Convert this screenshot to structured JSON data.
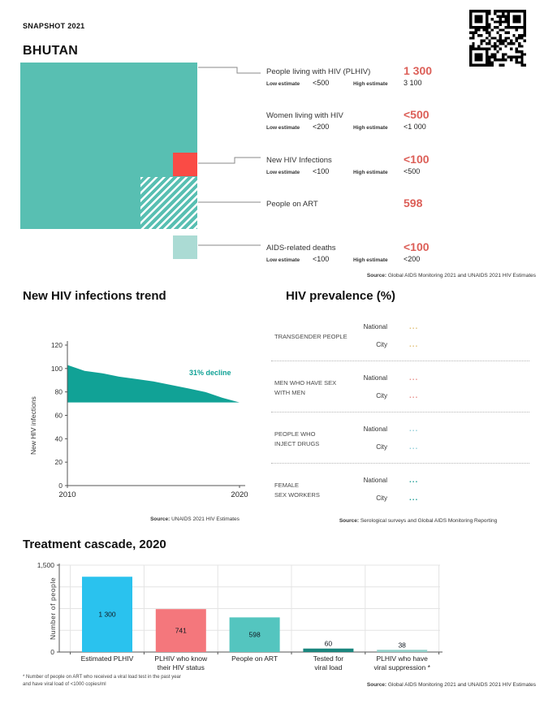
{
  "header": {
    "snapshot": "SNAPSHOT 2021",
    "country": "BHUTAN"
  },
  "key_stats": {
    "stats": [
      {
        "label": "People living with HIV (PLHIV)",
        "value": "1 300",
        "low_label": "Low estimate",
        "low": "<500",
        "high_label": "High estimate",
        "high": "3 100"
      },
      {
        "label": "Women living with HIV",
        "value": "<500",
        "low_label": "Low estimate",
        "low": "<200",
        "high_label": "High estimate",
        "high": "<1 000"
      },
      {
        "label": "New HIV Infections",
        "value": "<100",
        "low_label": "Low estimate",
        "low": "<100",
        "high_label": "High estimate",
        "high": "<500"
      },
      {
        "label": "People on ART",
        "value": "598"
      },
      {
        "label": "AIDS-related deaths",
        "value": "<100",
        "low_label": "Low estimate",
        "low": "<100",
        "high_label": "High estimate",
        "high": "<200"
      }
    ],
    "source": {
      "label": "Source:",
      "text": " Global AIDS Monitoring 2021 and UNAIDS 2021 HIV Estimates"
    },
    "accent_color": "#dc5f58",
    "square_colors": {
      "plhiv": "#58bfb2",
      "new_infections": "#fa4b45",
      "aids_deaths": "#abdbd4"
    }
  },
  "trend": {
    "source": {
      "label": "Source:",
      "text": " UNAIDS 2021 HIV Estimates"
    }
  },
  "prevalence": {
    "title": "HIV prevalence (%)",
    "national_label": "National",
    "city_label": "City",
    "groups": [
      {
        "name": "TRANSGENDER PEOPLE",
        "national": "...",
        "city": "...",
        "color": "#e2c27c"
      },
      {
        "name": "MEN WHO HAVE SEX\nWITH MEN",
        "national": "...",
        "city": "...",
        "color": "#e89490"
      },
      {
        "name": "PEOPLE WHO\nINJECT DRUGS",
        "national": "...",
        "city": "...",
        "color": "#96d0da"
      },
      {
        "name": "FEMALE\nSEX WORKERS",
        "national": "...",
        "city": "...",
        "color": "#2aa29a"
      }
    ],
    "source": {
      "label": "Source:",
      "text": " Serological surveys and Global AIDS Monitoring Reporting"
    }
  },
  "cascade": {
    "footnote_line1": "* Number of people on ART who received a viral load test in the past year",
    "footnote_line2": "and have viral load of <1000 copies/ml",
    "source": {
      "label": "Source:",
      "text": " Global AIDS Monitoring 2021 and UNAIDS 2021 HIV Estimates"
    }
  },
  "chart_data": [
    {
      "type": "area",
      "title": "New HIV infections trend",
      "xlabel": "",
      "ylabel": "New HIV infections",
      "x": [
        2010,
        2011,
        2012,
        2013,
        2014,
        2015,
        2016,
        2017,
        2018,
        2019,
        2020
      ],
      "values": [
        103,
        98,
        96,
        93,
        91,
        89,
        86,
        83,
        80,
        75,
        71
      ],
      "baseline": 71,
      "xlim": [
        2010,
        2020
      ],
      "ylim": [
        0,
        120
      ],
      "yticks": [
        0,
        20,
        40,
        60,
        80,
        100,
        120
      ],
      "xticks": [
        2010,
        2020
      ],
      "annotation": "31% decline",
      "color": "#11a296",
      "grid": false,
      "legend": "none"
    },
    {
      "type": "bar",
      "title": "Treatment cascade, 2020",
      "xlabel": "",
      "ylabel": "Number of people",
      "categories": [
        "Estimated PLHIV",
        "PLHIV who know\ntheir HIV status",
        "People on ART",
        "Tested for\nviral load",
        "PLHIV who have\nviral suppression *"
      ],
      "values": [
        1300,
        741,
        598,
        60,
        38
      ],
      "value_labels": [
        "1 300",
        "741",
        "598",
        "60",
        "38"
      ],
      "label_positions": [
        "inside",
        "inside",
        "inside",
        "above",
        "above"
      ],
      "colors": [
        "#2ac2ee",
        "#f4777c",
        "#54c5bf",
        "#1a867e",
        "#90cfc8"
      ],
      "ylim": [
        0,
        1500
      ],
      "yticks": [
        {
          "value": 0,
          "label": "0"
        },
        {
          "value": 1500,
          "label": "1,500"
        }
      ],
      "gridlines": [
        375,
        750,
        1125,
        1500
      ],
      "grid": true,
      "legend": "none"
    }
  ]
}
